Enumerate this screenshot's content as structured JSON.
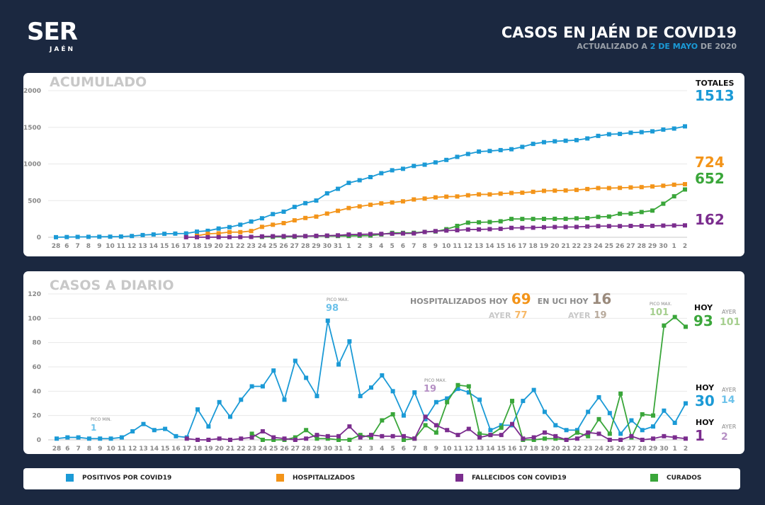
{
  "header": {
    "logo": "SER",
    "logo_sub": "JAÉN",
    "title": "CASOS EN JAÉN DE COVID19",
    "subtitle_pre": "ACTUALIZADO A ",
    "subtitle_date": "2 DE MAYO",
    "subtitle_post": " DE 2020"
  },
  "colors": {
    "positivos": "#1b9ad6",
    "hospitalizados": "#f39419",
    "fallecidos": "#7b2d8e",
    "curados": "#3aa63a",
    "background": "#1b2840"
  },
  "top": {
    "title": "ACUMULADO",
    "totales_label": "TOTALES",
    "totales": {
      "positivos": "1513",
      "hospitalizados": "724",
      "curados": "652",
      "fallecidos": "162"
    }
  },
  "bottom": {
    "title": "CASOS A DIARIO",
    "hosp_label": "HOSPITALIZADOS HOY",
    "hosp_hoy": "69",
    "hosp_ayer_label": "AYER",
    "hosp_ayer": "77",
    "uci_label": "EN UCI HOY",
    "uci_hoy": "16",
    "uci_ayer_label": "AYER",
    "uci_ayer": "19",
    "pico_min_label": "PICO MIN.",
    "pico_min_pos": "1",
    "pico_max_label": "PICO MAX.",
    "pico_max_pos": "98",
    "pico_max_fall": "19",
    "pico_max_cur": "101",
    "hoy_label": "HOY",
    "ayer_label": "AYER",
    "cur_hoy": "93",
    "cur_ayer": "101",
    "pos_hoy": "30",
    "pos_ayer": "14",
    "fall_hoy": "1",
    "fall_ayer": "2"
  },
  "legend": [
    "POSITIVOS POR COVID19",
    "HOSPITALIZADOS",
    "FALLECIDOS CON COVID19",
    "CURADOS"
  ],
  "chart_data": [
    {
      "type": "line",
      "title": "ACUMULADO",
      "ylim": [
        0,
        2000
      ],
      "yticks": [
        "0",
        "500",
        "1000",
        "1500",
        "2000"
      ],
      "grid": true,
      "categories": [
        "28",
        "6",
        "7",
        "8",
        "9",
        "10",
        "11",
        "12",
        "13",
        "14",
        "15",
        "16",
        "17",
        "18",
        "19",
        "20",
        "21",
        "22",
        "23",
        "24",
        "25",
        "26",
        "27",
        "28",
        "29",
        "30",
        "31",
        "1",
        "2",
        "3",
        "4",
        "5",
        "6",
        "7",
        "8",
        "9",
        "10",
        "11",
        "12",
        "13",
        "14",
        "15",
        "16",
        "17",
        "18",
        "19",
        "20",
        "21",
        "22",
        "23",
        "24",
        "25",
        "26",
        "27",
        "28",
        "29",
        "30",
        "1",
        "2"
      ],
      "series": [
        {
          "key": "positivos",
          "values": [
            1,
            3,
            5,
            6,
            7,
            8,
            10,
            17,
            30,
            38,
            47,
            50,
            52,
            77,
            88,
            119,
            138,
            171,
            215,
            259,
            316,
            349,
            414,
            465,
            501,
            599,
            661,
            742,
            778,
            821,
            874,
            914,
            934,
            973,
            990,
            1021,
            1055,
            1097,
            1136,
            1169,
            1177,
            1189,
            1201,
            1233,
            1274,
            1297,
            1309,
            1317,
            1325,
            1348,
            1383,
            1405,
            1410,
            1426,
            1434,
            1445,
            1469,
            1483,
            1513
          ]
        },
        {
          "key": "hospitalizados",
          "values": [
            null,
            null,
            null,
            null,
            null,
            null,
            null,
            null,
            null,
            null,
            null,
            null,
            null,
            20,
            47,
            54,
            70,
            70,
            85,
            142,
            171,
            193,
            231,
            263,
            282,
            323,
            361,
            399,
            421,
            443,
            462,
            475,
            490,
            516,
            528,
            544,
            554,
            557,
            573,
            585,
            585,
            595,
            604,
            608,
            620,
            633,
            636,
            639,
            646,
            658,
            671,
            671,
            674,
            680,
            684,
            693,
            703,
            717,
            724
          ]
        },
        {
          "key": "curados",
          "values": [
            null,
            null,
            null,
            null,
            null,
            null,
            null,
            null,
            null,
            null,
            null,
            null,
            null,
            null,
            null,
            null,
            null,
            null,
            5,
            5,
            5,
            5,
            7,
            15,
            16,
            17,
            17,
            17,
            21,
            23,
            39,
            60,
            60,
            61,
            73,
            79,
            110,
            155,
            199,
            204,
            208,
            218,
            250,
            250,
            250,
            251,
            252,
            252,
            258,
            261,
            278,
            283,
            321,
            323,
            344,
            364,
            458,
            559,
            652
          ]
        },
        {
          "key": "fallecidos",
          "values": [
            null,
            null,
            null,
            null,
            null,
            null,
            null,
            null,
            null,
            null,
            null,
            null,
            1,
            1,
            1,
            2,
            2,
            3,
            5,
            12,
            14,
            15,
            15,
            16,
            20,
            23,
            26,
            37,
            39,
            43,
            46,
            49,
            52,
            53,
            72,
            84,
            92,
            96,
            105,
            107,
            111,
            115,
            128,
            129,
            131,
            137,
            140,
            140,
            141,
            147,
            152,
            152,
            152,
            155,
            155,
            156,
            159,
            161,
            162
          ]
        }
      ]
    },
    {
      "type": "line",
      "title": "CASOS A DIARIO",
      "ylim": [
        0,
        120
      ],
      "yticks": [
        "0",
        "20",
        "40",
        "60",
        "80",
        "100",
        "120"
      ],
      "grid": true,
      "categories": [
        "28",
        "6",
        "7",
        "8",
        "9",
        "10",
        "11",
        "12",
        "13",
        "14",
        "15",
        "16",
        "17",
        "18",
        "19",
        "20",
        "21",
        "22",
        "23",
        "24",
        "25",
        "26",
        "27",
        "28",
        "29",
        "30",
        "31",
        "1",
        "2",
        "3",
        "4",
        "5",
        "6",
        "7",
        "8",
        "9",
        "10",
        "11",
        "12",
        "13",
        "14",
        "15",
        "16",
        "17",
        "18",
        "19",
        "20",
        "21",
        "22",
        "23",
        "24",
        "25",
        "26",
        "27",
        "28",
        "29",
        "30",
        "1",
        "2"
      ],
      "series": [
        {
          "key": "positivos",
          "values": [
            1,
            2,
            2,
            1,
            1,
            1,
            2,
            7,
            13,
            8,
            9,
            3,
            2,
            25,
            11,
            31,
            19,
            33,
            44,
            44,
            57,
            33,
            65,
            51,
            36,
            98,
            62,
            81,
            36,
            43,
            53,
            40,
            20,
            39,
            17,
            31,
            34,
            42,
            39,
            33,
            8,
            12,
            12,
            32,
            41,
            23,
            12,
            8,
            8,
            23,
            35,
            22,
            5,
            16,
            8,
            11,
            24,
            14,
            30
          ]
        },
        {
          "key": "curados",
          "values": [
            null,
            null,
            null,
            null,
            null,
            null,
            null,
            null,
            null,
            null,
            null,
            null,
            null,
            null,
            null,
            null,
            null,
            null,
            5,
            0,
            0,
            0,
            2,
            8,
            1,
            1,
            0,
            0,
            4,
            2,
            16,
            21,
            0,
            1,
            12,
            6,
            31,
            45,
            44,
            5,
            4,
            10,
            32,
            0,
            0,
            1,
            1,
            0,
            6,
            3,
            17,
            5,
            38,
            2,
            21,
            20,
            94,
            101,
            93
          ]
        },
        {
          "key": "fallecidos",
          "values": [
            null,
            null,
            null,
            null,
            null,
            null,
            null,
            null,
            null,
            null,
            null,
            null,
            1,
            0,
            0,
            1,
            0,
            1,
            2,
            7,
            2,
            1,
            0,
            1,
            4,
            3,
            3,
            11,
            2,
            4,
            3,
            3,
            3,
            1,
            19,
            12,
            8,
            4,
            9,
            2,
            4,
            4,
            13,
            1,
            2,
            6,
            3,
            0,
            1,
            6,
            5,
            0,
            0,
            3,
            0,
            1,
            3,
            2,
            1
          ]
        }
      ]
    }
  ]
}
